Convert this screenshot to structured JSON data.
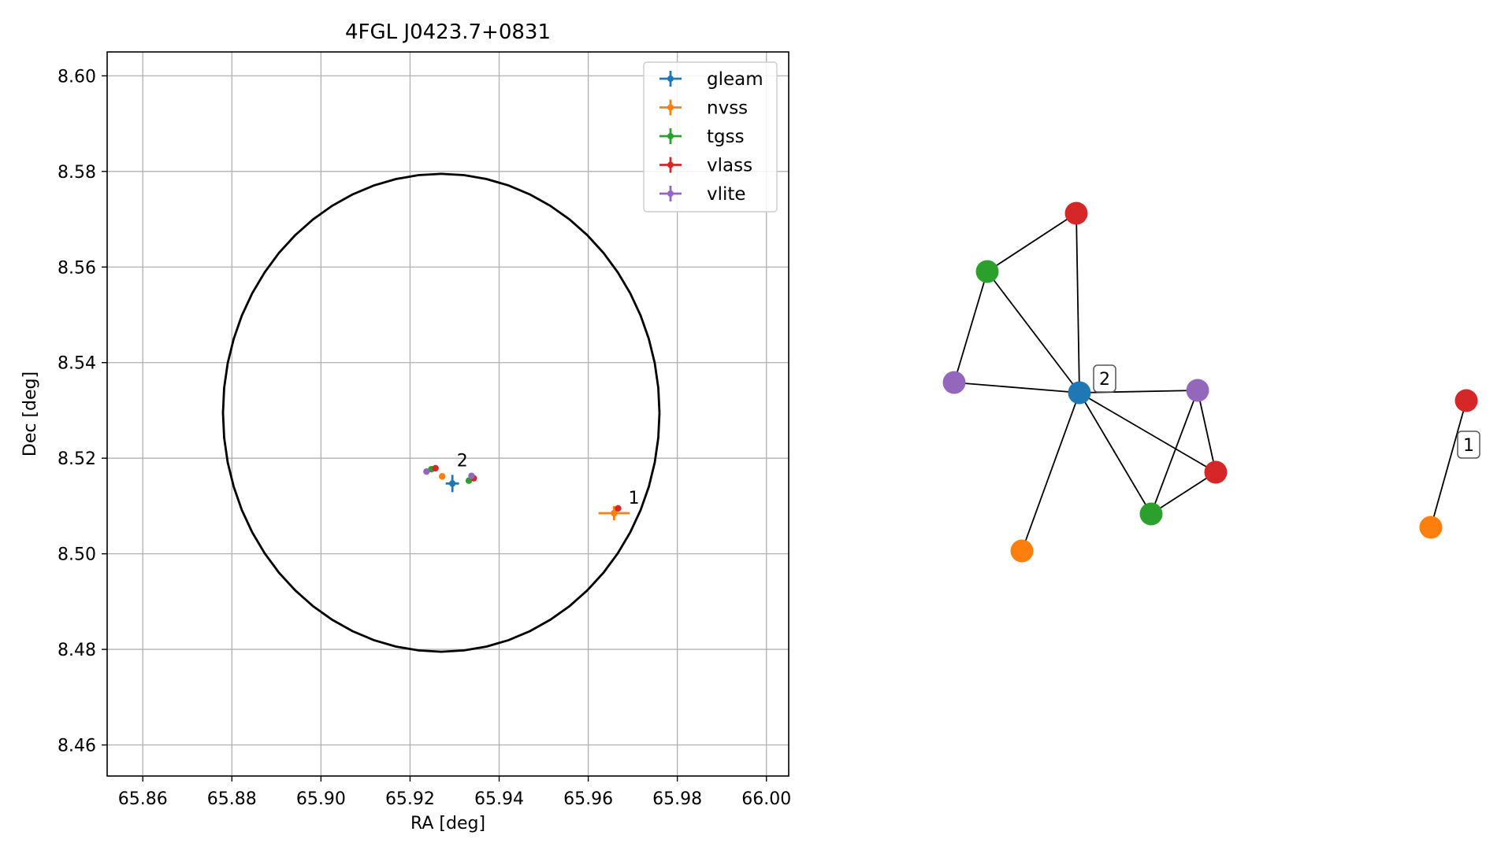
{
  "chart_data": [
    {
      "type": "scatter",
      "title": "4FGL J0423.7+0831",
      "xlabel": "RA [deg]",
      "ylabel": "Dec [deg]",
      "xlim": [
        65.852,
        66.005
      ],
      "ylim": [
        8.4535,
        8.605
      ],
      "xticks": [
        65.86,
        65.88,
        65.9,
        65.92,
        65.94,
        65.96,
        65.98,
        66.0
      ],
      "xtick_labels": [
        "65.86",
        "65.88",
        "65.90",
        "65.92",
        "65.94",
        "65.96",
        "65.98",
        "66.00"
      ],
      "yticks": [
        8.46,
        8.48,
        8.5,
        8.52,
        8.54,
        8.56,
        8.58,
        8.6
      ],
      "ytick_labels": [
        "8.46",
        "8.48",
        "8.50",
        "8.52",
        "8.54",
        "8.56",
        "8.58",
        "8.60"
      ],
      "grid": true,
      "legend_position": "top-right",
      "ellipse": {
        "center": [
          65.927,
          8.5295
        ],
        "semi_axis_ra": 0.049,
        "semi_axis_dec": 0.05,
        "color": "#000000"
      },
      "series": [
        {
          "name": "gleam",
          "color": "#1f77b4",
          "points": [
            {
              "x": 65.9295,
              "y": 8.5147,
              "xerr": 0.0015,
              "yerr": 0.0018
            }
          ]
        },
        {
          "name": "nvss",
          "color": "#ff7f0e",
          "points": [
            {
              "x": 65.9658,
              "y": 8.5085,
              "xerr": 0.0035,
              "yerr": 0.0015
            },
            {
              "x": 65.9272,
              "y": 8.5162,
              "xerr": 0.0003,
              "yerr": 0.0003
            }
          ]
        },
        {
          "name": "tgss",
          "color": "#2ca02c",
          "points": [
            {
              "x": 65.9248,
              "y": 8.5177,
              "xerr": 0.0002,
              "yerr": 0.0002
            },
            {
              "x": 65.9332,
              "y": 8.5153,
              "xerr": 0.0002,
              "yerr": 0.0002
            }
          ]
        },
        {
          "name": "vlass",
          "color": "#d62728",
          "points": [
            {
              "x": 65.9257,
              "y": 8.5179,
              "xerr": 0.0002,
              "yerr": 0.0002
            },
            {
              "x": 65.9343,
              "y": 8.5158,
              "xerr": 0.0002,
              "yerr": 0.0002
            },
            {
              "x": 65.9667,
              "y": 8.5095,
              "xerr": 0.0002,
              "yerr": 0.0002
            }
          ]
        },
        {
          "name": "vlite",
          "color": "#9467bd",
          "points": [
            {
              "x": 65.9237,
              "y": 8.5172,
              "xerr": 0.0002,
              "yerr": 0.0002
            },
            {
              "x": 65.9338,
              "y": 8.5163,
              "xerr": 0.0002,
              "yerr": 0.0002
            }
          ]
        }
      ],
      "annotations": [
        {
          "text": "2",
          "x": 65.9305,
          "y": 8.5183
        },
        {
          "text": "1",
          "x": 65.969,
          "y": 8.5105
        }
      ]
    },
    {
      "type": "network",
      "nodes": [
        {
          "id": "gleam",
          "color": "#1f77b4"
        },
        {
          "id": "vlass_a",
          "color": "#d62728"
        },
        {
          "id": "tgss_a",
          "color": "#2ca02c"
        },
        {
          "id": "vlite_a",
          "color": "#9467bd"
        },
        {
          "id": "vlite_b",
          "color": "#9467bd"
        },
        {
          "id": "vlass_b",
          "color": "#d62728"
        },
        {
          "id": "tgss_b",
          "color": "#2ca02c"
        },
        {
          "id": "nvss_a",
          "color": "#ff7f0e"
        },
        {
          "id": "vlass_c",
          "color": "#d62728"
        },
        {
          "id": "nvss_b",
          "color": "#ff7f0e"
        }
      ],
      "edges": [
        [
          "vlass_a",
          "tgss_a"
        ],
        [
          "vlass_a",
          "gleam"
        ],
        [
          "tgss_a",
          "gleam"
        ],
        [
          "tgss_a",
          "vlite_a"
        ],
        [
          "vlite_a",
          "gleam"
        ],
        [
          "gleam",
          "vlite_b"
        ],
        [
          "gleam",
          "vlass_b"
        ],
        [
          "gleam",
          "tgss_b"
        ],
        [
          "gleam",
          "nvss_a"
        ],
        [
          "vlite_b",
          "vlass_b"
        ],
        [
          "vlite_b",
          "tgss_b"
        ],
        [
          "tgss_b",
          "vlass_b"
        ],
        [
          "vlass_c",
          "nvss_b"
        ]
      ],
      "labels": [
        {
          "text": "2",
          "node": "gleam"
        },
        {
          "text": "1",
          "node": "vlass_c"
        }
      ]
    }
  ]
}
